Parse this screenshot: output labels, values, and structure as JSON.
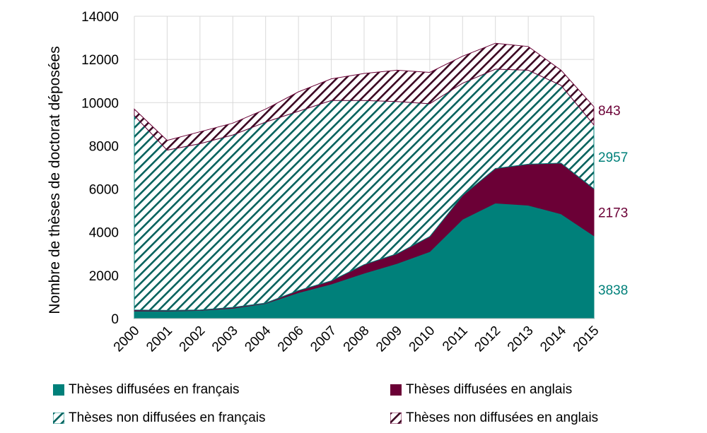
{
  "chart_data": {
    "type": "area",
    "stacked": true,
    "title": "",
    "xlabel": "",
    "ylabel": "Nombre de thèses de doctorat déposées",
    "ylim": [
      0,
      14000
    ],
    "yticks": [
      0,
      2000,
      4000,
      6000,
      8000,
      10000,
      12000,
      14000
    ],
    "grid": true,
    "legend_position": "bottom",
    "categories": [
      "2000",
      "2001",
      "2002",
      "2003",
      "2004",
      "2006",
      "2007",
      "2008",
      "2009",
      "2010",
      "2011",
      "2012",
      "2013",
      "2014",
      "2015"
    ],
    "series": [
      {
        "name": "Thèses diffusées en français",
        "color": "#00807A",
        "pattern": "solid",
        "values": [
          350,
          350,
          380,
          480,
          700,
          1200,
          1600,
          2100,
          2550,
          3100,
          4600,
          5350,
          5250,
          4850,
          3838
        ]
      },
      {
        "name": "Thèses diffusées en anglais",
        "color": "#6B0036",
        "pattern": "solid",
        "values": [
          50,
          30,
          20,
          40,
          20,
          100,
          150,
          400,
          450,
          700,
          1100,
          1600,
          1900,
          2350,
          2173
        ]
      },
      {
        "name": "Thèses non diffusées en français",
        "color": "#00807A",
        "pattern": "diagonal-hatch",
        "values": [
          9000,
          7420,
          7700,
          7980,
          8380,
          8300,
          8350,
          7600,
          7050,
          6150,
          5200,
          4600,
          4350,
          3600,
          2957
        ]
      },
      {
        "name": "Thèses non diffusées en anglais",
        "color": "#6B0036",
        "pattern": "diagonal-hatch",
        "values": [
          300,
          450,
          550,
          550,
          600,
          900,
          1000,
          1250,
          1450,
          1450,
          1250,
          1200,
          1100,
          700,
          843
        ]
      }
    ],
    "data_labels": [
      "3838",
      "2173",
      "2957",
      "843"
    ]
  }
}
